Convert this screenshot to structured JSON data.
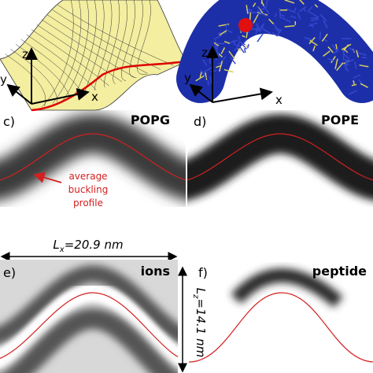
{
  "panels": {
    "a": {
      "axes": [
        "z",
        "y",
        "x"
      ]
    },
    "b": {
      "axes": [
        "z",
        "y",
        "x"
      ]
    },
    "c": {
      "label": "c)",
      "title": "POPG",
      "annotation": [
        "average",
        "buckling",
        "profile"
      ]
    },
    "d": {
      "label": "d)",
      "title": "POPE"
    },
    "e": {
      "label": "e)",
      "title": "ions"
    },
    "f": {
      "label": "f)",
      "title": "peptide"
    }
  },
  "dimensions": {
    "lx": {
      "symbol": "L",
      "sub": "x",
      "rest": "=20.9 nm"
    },
    "lz": {
      "symbol": "L",
      "sub": "z",
      "rest": "=14.1 nm"
    }
  }
}
